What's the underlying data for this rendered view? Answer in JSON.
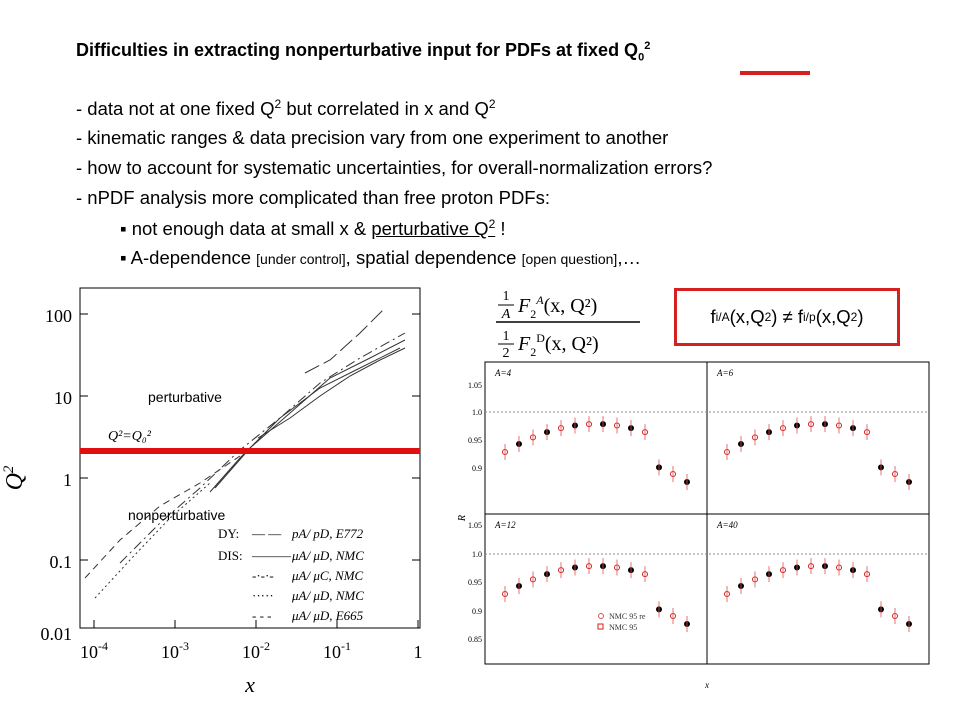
{
  "title": {
    "main": "Difficulties in extracting nonperturbative input for PDFs at fixed Q",
    "sub": "0",
    "sup": "2"
  },
  "bullets": {
    "b1_pre": "- data not at one fixed Q",
    "b1_sup": "2",
    "b1_post": " but correlated in x and Q",
    "b1_sup2": "2",
    "b2": "- kinematic ranges & data precision vary from one experiment to another",
    "b3": "- how to account for systematic uncertainties, for overall-normalization errors?",
    "b4": "- nPDF analysis more complicated than free proton PDFs:",
    "s1_pre": "▪ not enough data at small x & ",
    "s1_u": "perturbative Q",
    "s1_sup": "2",
    "s1_post": " !",
    "s2_a": "▪ A-dependence ",
    "s2_b": "[under control]",
    "s2_c": ", spatial dependence ",
    "s2_d": "[open question]",
    "s2_e": ",…"
  },
  "left_plot": {
    "ylabel": "Q",
    "ylabel_sup": "2",
    "xlabel": "x",
    "yticks": [
      "100",
      "10",
      "1",
      "0.1",
      "0.01"
    ],
    "xticks": [
      {
        "b": "10",
        "e": "-4"
      },
      {
        "b": "10",
        "e": "-3"
      },
      {
        "b": "10",
        "e": "-2"
      },
      {
        "b": "10",
        "e": "-1"
      },
      {
        "b": "1",
        "e": ""
      }
    ],
    "label_pert": "perturbative",
    "label_nonpert": "nonperturbative",
    "q0_label": "Q²=Q₀²",
    "legend": [
      {
        "group": "DY:",
        "style": "— —",
        "text": "pA/ pD,  E772"
      },
      {
        "group": "DIS:",
        "style": "———",
        "text": "μA/ μD,  NMC"
      },
      {
        "group": "",
        "style": "-·-·-",
        "text": "μA/ μC,  NMC"
      },
      {
        "group": "",
        "style": "·····",
        "text": "μA/ μD,  NMC"
      },
      {
        "group": "",
        "style": "- - -",
        "text": "μA/ μD,  E665"
      }
    ]
  },
  "formula": {
    "half": "1",
    "two": "2",
    "numA": "A",
    "F": "F",
    "sub2": "2",
    "supA": "A",
    "supD": "D",
    "arg": "(x, Q²)",
    "frac1": "1",
    "frac2": "A"
  },
  "fbox": {
    "f1": "f",
    "f1sub": "i/A",
    "mid": "(x,Q",
    "sup": "2",
    "neq": ") ≠ f",
    "f2sub": "i/p",
    "end": "(x,Q",
    "sup2": "2",
    "close": ")"
  },
  "right_plot": {
    "panels": [
      "A=4",
      "A=6",
      "A=12",
      "A=40"
    ],
    "ylabel": "R",
    "yticks_top": [
      "1.05",
      "1.0",
      "0.95",
      "0.9"
    ],
    "yticks_bot": [
      "1.05",
      "1.0",
      "0.95",
      "0.9",
      "0.85"
    ],
    "xlabel": "x",
    "legend": [
      "NMC 95 re",
      "NMC 95"
    ]
  }
}
